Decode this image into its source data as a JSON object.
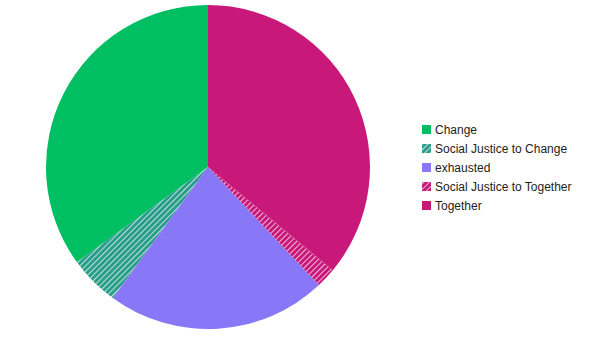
{
  "chart_data": {
    "type": "pie",
    "categories": [
      "Change",
      "Social Justice to Change",
      "exhausted",
      "Social Justice to Together",
      "Together"
    ],
    "values": [
      35,
      5,
      22,
      2,
      36
    ],
    "colors": [
      "#00bf63",
      "#2a9d8a",
      "#8877f7",
      "#c8197a",
      "#c8197a"
    ],
    "legend": "right"
  }
}
